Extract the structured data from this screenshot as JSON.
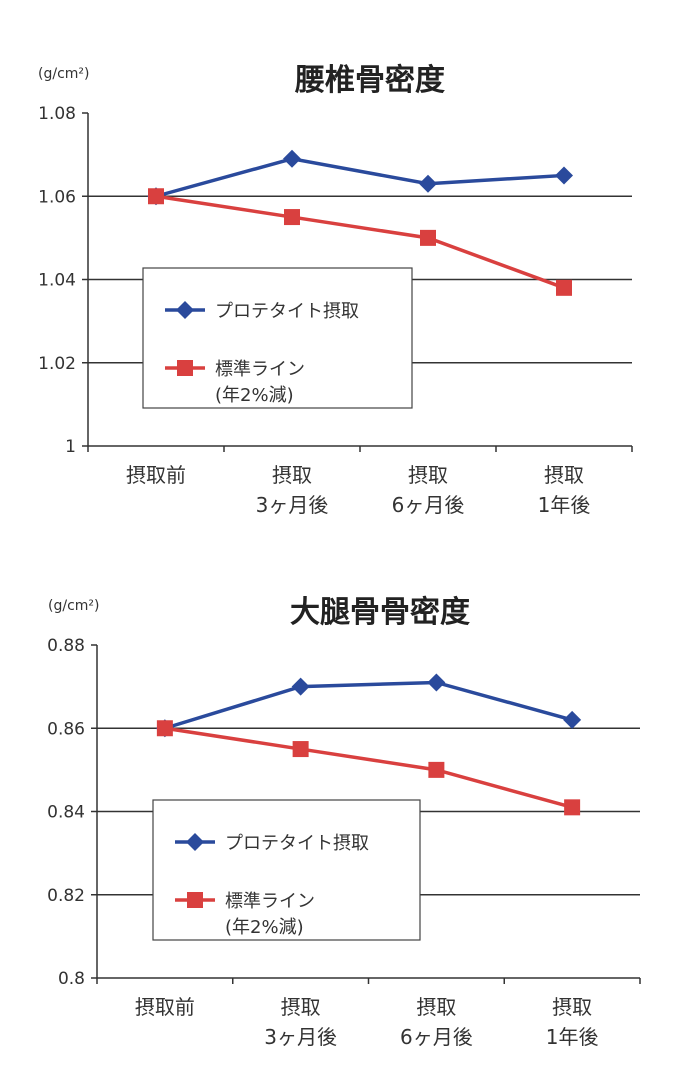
{
  "chart_data": [
    {
      "type": "line",
      "title": "腰椎骨密度",
      "ylabel": "(g/cm²)",
      "categories": [
        [
          "摂取前"
        ],
        [
          "摂取",
          "3ヶ月後"
        ],
        [
          "摂取",
          "6ヶ月後"
        ],
        [
          "摂取",
          "1年後"
        ]
      ],
      "ylim": [
        1,
        1.08
      ],
      "yticks": [
        1,
        1.02,
        1.04,
        1.06,
        1.08
      ],
      "ytick_labels": [
        "1",
        "1.02",
        "1.04",
        "1.06",
        "1.08"
      ],
      "grid": true,
      "legend_placement": "center-left",
      "series": [
        {
          "name": "プロテタイト摂取",
          "marker": "diamond",
          "color": "#2a4a9c",
          "values": [
            1.06,
            1.069,
            1.063,
            1.065
          ]
        },
        {
          "name": "標準ライン",
          "name_line2": "(年2%減)",
          "marker": "square",
          "color": "#d9403f",
          "values": [
            1.06,
            1.055,
            1.05,
            1.038
          ]
        }
      ]
    },
    {
      "type": "line",
      "title": "大腿骨骨密度",
      "ylabel": "(g/cm²)",
      "categories": [
        [
          "摂取前"
        ],
        [
          "摂取",
          "3ヶ月後"
        ],
        [
          "摂取",
          "6ヶ月後"
        ],
        [
          "摂取",
          "1年後"
        ]
      ],
      "ylim": [
        0.8,
        0.88
      ],
      "yticks": [
        0.8,
        0.82,
        0.84,
        0.86,
        0.88
      ],
      "ytick_labels": [
        "0.8",
        "0.82",
        "0.84",
        "0.86",
        "0.88"
      ],
      "grid": true,
      "legend_placement": "center-left",
      "series": [
        {
          "name": "プロテタイト摂取",
          "marker": "diamond",
          "color": "#2a4a9c",
          "values": [
            0.86,
            0.87,
            0.871,
            0.862
          ]
        },
        {
          "name": "標準ライン",
          "name_line2": "(年2%減)",
          "marker": "square",
          "color": "#d9403f",
          "values": [
            0.86,
            0.855,
            0.85,
            0.841
          ]
        }
      ]
    }
  ]
}
